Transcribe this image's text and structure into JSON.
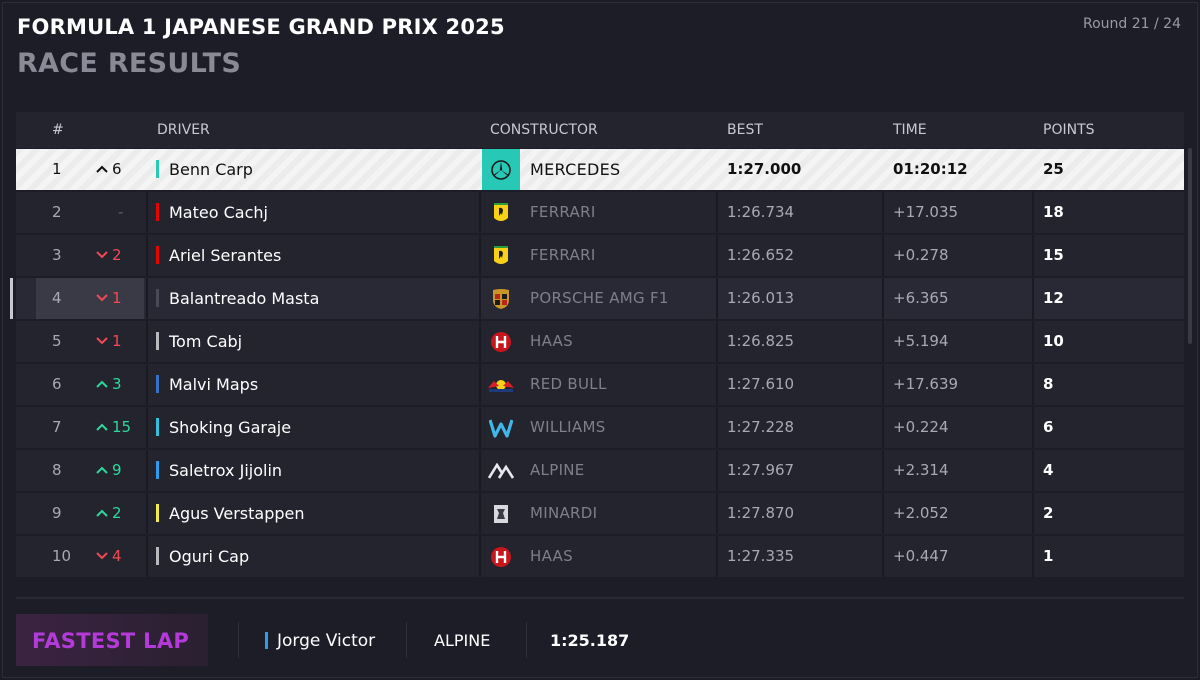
{
  "header": {
    "title": "FORMULA 1 JAPANESE GRAND PRIX 2025",
    "subtitle": "RACE RESULTS",
    "round": "Round 21 / 24"
  },
  "columns": {
    "pos": "#",
    "driver": "DRIVER",
    "constructor": "CONSTRUCTOR",
    "best": "BEST",
    "time": "TIME",
    "points": "POINTS"
  },
  "results": [
    {
      "pos": "1",
      "change_dir": "up",
      "change": "6",
      "driver": "Benn Carp",
      "team_color": "#27c9b6",
      "constructor": "MERCEDES",
      "logo": "mercedes-icon",
      "best": "1:27.000",
      "time": "01:20:12",
      "points": "25"
    },
    {
      "pos": "2",
      "change_dir": "same",
      "change": "-",
      "driver": "Mateo Cachj",
      "team_color": "#e10600",
      "constructor": "FERRARI",
      "logo": "ferrari-icon",
      "best": "1:26.734",
      "time": "+17.035",
      "points": "18"
    },
    {
      "pos": "3",
      "change_dir": "down",
      "change": "2",
      "driver": "Ariel Serantes",
      "team_color": "#e10600",
      "constructor": "FERRARI",
      "logo": "ferrari-icon",
      "best": "1:26.652",
      "time": "+0.278",
      "points": "15"
    },
    {
      "pos": "4",
      "change_dir": "down",
      "change": "1",
      "driver": "Balantreado Masta",
      "team_color": "#4a4a56",
      "constructor": "PORSCHE AMG F1",
      "logo": "porsche-icon",
      "best": "1:26.013",
      "time": "+6.365",
      "points": "12"
    },
    {
      "pos": "5",
      "change_dir": "down",
      "change": "1",
      "driver": "Tom Cabj",
      "team_color": "#b6babd",
      "constructor": "HAAS",
      "logo": "haas-icon",
      "best": "1:26.825",
      "time": "+5.194",
      "points": "10"
    },
    {
      "pos": "6",
      "change_dir": "up",
      "change": "3",
      "driver": "Malvi Maps",
      "team_color": "#3671c6",
      "constructor": "RED BULL",
      "logo": "redbull-icon",
      "best": "1:27.610",
      "time": "+17.639",
      "points": "8"
    },
    {
      "pos": "7",
      "change_dir": "up",
      "change": "15",
      "driver": "Shoking Garaje",
      "team_color": "#37bedd",
      "constructor": "WILLIAMS",
      "logo": "williams-icon",
      "best": "1:27.228",
      "time": "+0.224",
      "points": "6"
    },
    {
      "pos": "8",
      "change_dir": "up",
      "change": "9",
      "driver": "Saletrox Jijolin",
      "team_color": "#2f9bea",
      "constructor": "ALPINE",
      "logo": "alpine-icon",
      "best": "1:27.967",
      "time": "+2.314",
      "points": "4"
    },
    {
      "pos": "9",
      "change_dir": "up",
      "change": "2",
      "driver": "Agus Verstappen",
      "team_color": "#f2e94e",
      "constructor": "MINARDI",
      "logo": "minardi-icon",
      "best": "1:27.870",
      "time": "+2.052",
      "points": "2"
    },
    {
      "pos": "10",
      "change_dir": "down",
      "change": "4",
      "driver": "Oguri Cap",
      "team_color": "#b6babd",
      "constructor": "HAAS",
      "logo": "haas-icon",
      "best": "1:27.335",
      "time": "+0.447",
      "points": "1"
    }
  ],
  "fastest_lap": {
    "label": "FASTEST LAP",
    "driver": "Jorge Victor",
    "team_color": "#2f9bea",
    "constructor": "ALPINE",
    "time": "1:25.187"
  }
}
